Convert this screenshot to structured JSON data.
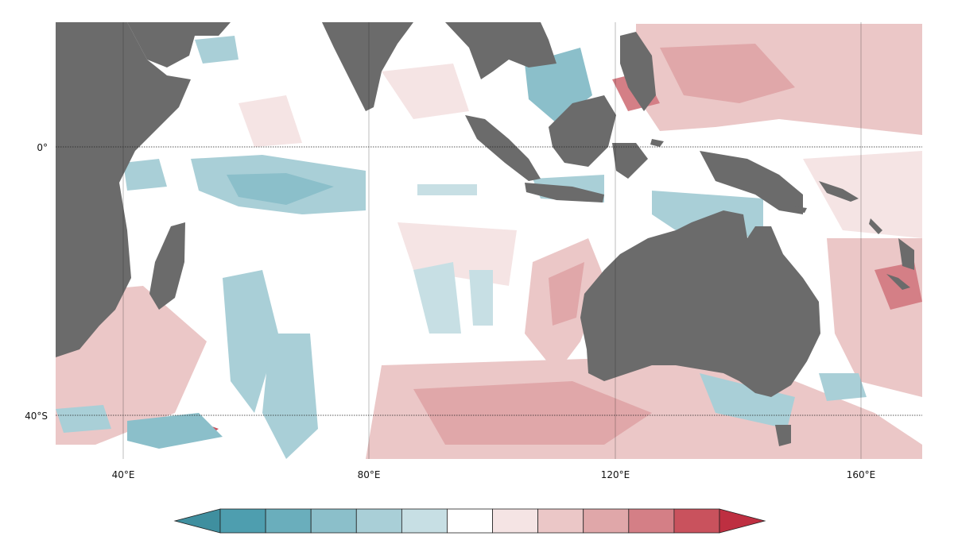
{
  "map": {
    "projection": "plate carree",
    "lon_range": [
      29,
      170
    ],
    "lat_range": [
      -50,
      20
    ],
    "latitude_labels": [
      {
        "value": 0,
        "label": "0°"
      },
      {
        "value": -40,
        "label": "40°S"
      }
    ],
    "longitude_labels": [
      {
        "value": 40,
        "label": "40°E"
      },
      {
        "value": 80,
        "label": "80°E"
      },
      {
        "value": 120,
        "label": "120°E"
      },
      {
        "value": 160,
        "label": "160°E"
      }
    ],
    "land_color": "#6b6b6b",
    "ocean_color": "#ffffff",
    "gridlines": true,
    "gridline_style": "dotted"
  },
  "colorbar": {
    "orientation": "horizontal",
    "extend": "both",
    "tick_labels_shown": false,
    "colors": [
      "#3f8f9f",
      "#4e9eaf",
      "#6aaebc",
      "#8bbfca",
      "#a9cfd7",
      "#c7dfe4",
      "#ffffff",
      "#f5e4e4",
      "#ebc7c7",
      "#e0a7a9",
      "#d47f86",
      "#c9525d",
      "#be2f41"
    ]
  }
}
